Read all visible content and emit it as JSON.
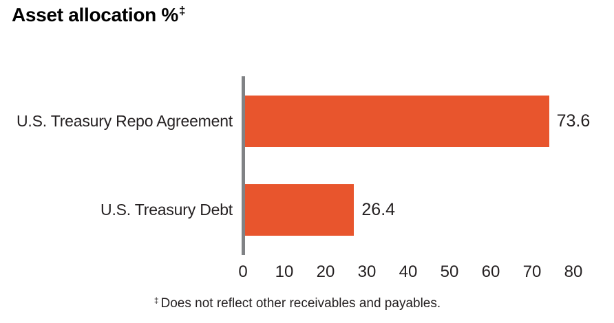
{
  "title": {
    "text": "Asset allocation %",
    "dagger": "‡"
  },
  "footnote": {
    "marker": "‡",
    "text": "Does not reflect other receivables and payables."
  },
  "colors": {
    "bar": "#E8552D",
    "axis": "#808285",
    "text": "#231F20",
    "title": "#000000"
  },
  "chart_data": {
    "type": "bar",
    "orientation": "horizontal",
    "title": "Asset allocation %‡",
    "categories": [
      "U.S. Treasury Repo Agreement",
      "U.S. Treasury Debt"
    ],
    "values": [
      73.6,
      26.4
    ],
    "value_labels": [
      "73.6",
      "26.4"
    ],
    "xlabel": "",
    "ylabel": "",
    "xlim": [
      0,
      80
    ],
    "x_ticks": [
      0,
      10,
      20,
      30,
      40,
      50,
      60,
      70,
      80
    ],
    "grid": false,
    "legend": false,
    "footnote": "‡ Does not reflect other receivables and payables."
  }
}
